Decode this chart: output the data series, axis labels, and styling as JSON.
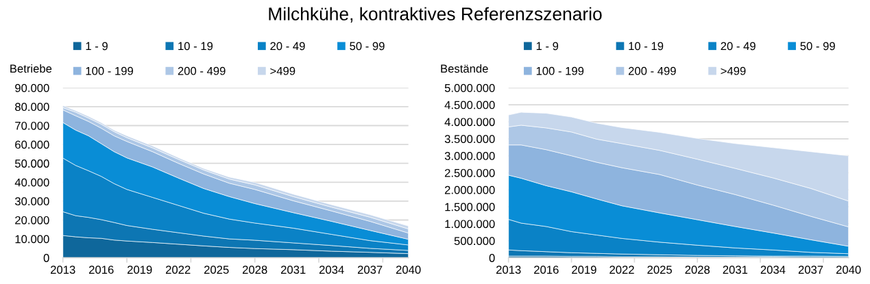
{
  "chart_data": [
    {
      "type": "area",
      "title": "Milchkühe, kontraktives Referenzszenario",
      "ylabel": "Betriebe",
      "stacked": true,
      "grid": "y",
      "legend": "top",
      "x": [
        2013,
        2014,
        2015,
        2016,
        2017,
        2018,
        2020,
        2022,
        2024,
        2026,
        2028,
        2031,
        2034,
        2037,
        2040
      ],
      "series": [
        {
          "name": "1 - 9",
          "color": "#0f679b",
          "values": [
            11800,
            11100,
            10600,
            10300,
            9400,
            8900,
            8100,
            7200,
            6300,
            5500,
            4900,
            4300,
            3500,
            2900,
            2200
          ]
        },
        {
          "name": "10 - 19",
          "color": "#0d76b3",
          "values": [
            12600,
            11200,
            10800,
            9900,
            9300,
            8200,
            7000,
            6100,
            5200,
            4500,
            4400,
            3600,
            3000,
            2100,
            1700
          ]
        },
        {
          "name": "20 - 49",
          "color": "#0a82c6",
          "values": [
            28400,
            26600,
            24700,
            22900,
            20600,
            19100,
            16900,
            14500,
            12100,
            10500,
            9100,
            7800,
            5900,
            4100,
            2900
          ]
        },
        {
          "name": "50 - 99",
          "color": "#098dd6",
          "values": [
            18800,
            18700,
            18500,
            17300,
            16900,
            16700,
            16100,
            14500,
            13100,
            11900,
            10300,
            8200,
            6900,
            5400,
            3000
          ]
        },
        {
          "name": "100 - 199",
          "color": "#8eb4de",
          "values": [
            6700,
            7600,
            7600,
            8200,
            8400,
            8700,
            8100,
            7800,
            7700,
            7100,
            7500,
            6300,
            5500,
            4800,
            3300
          ]
        },
        {
          "name": "200 - 499",
          "color": "#adc7e6",
          "values": [
            1200,
            1900,
            1800,
            2100,
            2200,
            2000,
            2000,
            2100,
            2100,
            2200,
            2400,
            2200,
            2000,
            2200,
            2200
          ]
        },
        {
          "name": ">499",
          "color": "#c7d7ec",
          "values": [
            1100,
            800,
            900,
            800,
            800,
            1000,
            1000,
            900,
            800,
            1000,
            1300,
            1300,
            1300,
            1300,
            1500
          ]
        }
      ],
      "xlim": [
        2013,
        2040
      ],
      "xticks": [
        2013,
        2016,
        2019,
        2022,
        2025,
        2028,
        2031,
        2034,
        2037,
        2040,
        {
          "value": 2013,
          "label": null
        },
        {
          "value": 2018,
          "label": null
        },
        {
          "value": 2023,
          "label": null
        },
        {
          "value": 2028,
          "label": null
        },
        {
          "value": 2033,
          "label": null
        },
        {
          "value": 2038,
          "label": null
        }
      ],
      "ylim": [
        0,
        90000
      ],
      "yticks": [
        0,
        {
          "value": 10000,
          "label": "10.000"
        },
        {
          "value": 20000,
          "label": "20.000"
        },
        {
          "value": 30000,
          "label": "30.000"
        },
        {
          "value": 40000,
          "label": "40.000"
        },
        {
          "value": 50000,
          "label": "50.000"
        },
        {
          "value": 60000,
          "label": "60.000"
        },
        {
          "value": 70000,
          "label": "70.000"
        },
        {
          "value": 80000,
          "label": "80.000"
        },
        {
          "value": 90000,
          "label": "90.000"
        }
      ]
    },
    {
      "type": "area",
      "ylabel": "Bestände",
      "stacked": true,
      "grid": "y",
      "legend": "top",
      "x": [
        2013,
        2014,
        2016,
        2018,
        2020,
        2022,
        2025,
        2028,
        2031,
        2034,
        2037,
        2040
      ],
      "series": [
        {
          "name": "1 - 9",
          "color": "#0f679b",
          "values": [
            50000,
            50000,
            50000,
            40000,
            40000,
            30000,
            30000,
            20000,
            20000,
            20000,
            10000,
            10000
          ]
        },
        {
          "name": "10 - 19",
          "color": "#0d76b3",
          "values": [
            180000,
            160000,
            130000,
            110000,
            90000,
            80000,
            60000,
            50000,
            40000,
            30000,
            40000,
            30000
          ]
        },
        {
          "name": "20 - 49",
          "color": "#0a82c6",
          "values": [
            900000,
            810000,
            740000,
            620000,
            540000,
            460000,
            370000,
            300000,
            230000,
            180000,
            110000,
            80000
          ]
        },
        {
          "name": "50 - 99",
          "color": "#098dd6",
          "values": [
            1300000,
            1320000,
            1200000,
            1170000,
            1060000,
            960000,
            860000,
            750000,
            630000,
            500000,
            370000,
            220000
          ]
        },
        {
          "name": "100 - 199",
          "color": "#8eb4de",
          "values": [
            890000,
            980000,
            1060000,
            1060000,
            1080000,
            1120000,
            1130000,
            1020000,
            940000,
            820000,
            690000,
            570000
          ]
        },
        {
          "name": "200 - 499",
          "color": "#adc7e6",
          "values": [
            530000,
            580000,
            640000,
            700000,
            680000,
            710000,
            710000,
            760000,
            770000,
            800000,
            820000,
            760000
          ]
        },
        {
          "name": ">499",
          "color": "#c7d7ec",
          "values": [
            350000,
            380000,
            430000,
            440000,
            470000,
            470000,
            530000,
            610000,
            730000,
            890000,
            1080000,
            1330000
          ]
        }
      ],
      "xlim": [
        2013,
        2040
      ],
      "xticks": [
        2013,
        2016,
        2019,
        2022,
        2025,
        2028,
        2031,
        2034,
        2037,
        2040,
        {
          "value": 2013,
          "label": null
        },
        {
          "value": 2018,
          "label": null
        },
        {
          "value": 2023,
          "label": null
        },
        {
          "value": 2028,
          "label": null
        },
        {
          "value": 2033,
          "label": null
        },
        {
          "value": 2038,
          "label": null
        }
      ],
      "ylim": [
        0,
        5000000
      ],
      "yticks": [
        0,
        {
          "value": 500000,
          "label": "500.000"
        },
        {
          "value": 1000000,
          "label": "1.000.000"
        },
        {
          "value": 1500000,
          "label": "1.500.000"
        },
        {
          "value": 2000000,
          "label": "2.000.000"
        },
        {
          "value": 2500000,
          "label": "2.500.000"
        },
        {
          "value": 3000000,
          "label": "3.000.000"
        },
        {
          "value": 3500000,
          "label": "3.500.000"
        },
        {
          "value": 4000000,
          "label": "4.000.000"
        },
        {
          "value": 4500000,
          "label": "4.500.000"
        },
        {
          "value": 5000000,
          "label": "5.000.000"
        }
      ]
    }
  ]
}
